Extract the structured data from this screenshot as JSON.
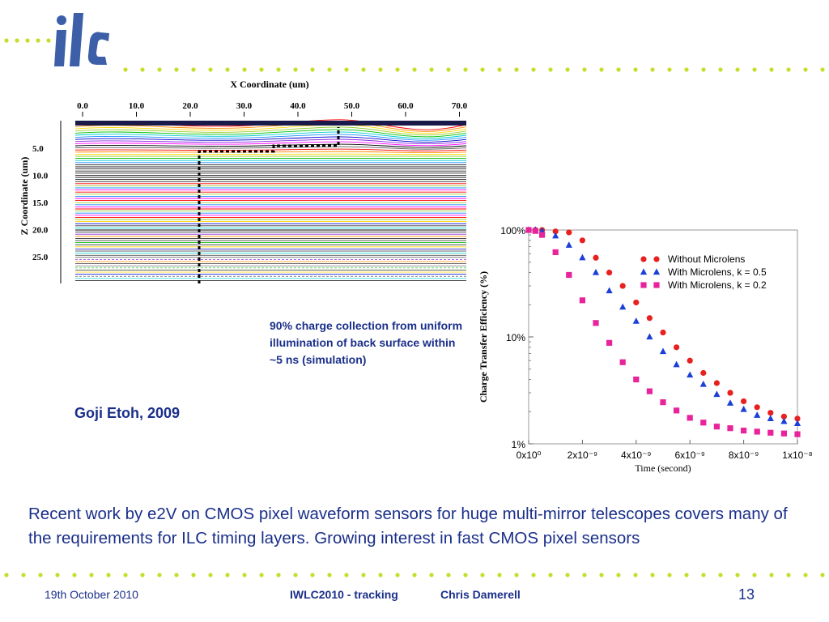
{
  "logo": {
    "text": "ilc"
  },
  "simulation_figure": {
    "x_axis_title": "X Coordinate (um)",
    "x_ticks": [
      "0.0",
      "10.0",
      "20.0",
      "30.0",
      "40.0",
      "50.0",
      "60.0",
      "70.0"
    ],
    "z_axis_title": "Z Coordinate (um)",
    "z_ticks": [
      "5.0",
      "10.0",
      "15.0",
      "20.0",
      "25.0"
    ]
  },
  "simulation_caption": "90% charge collection from uniform illumination of back surface within ~5 ns (simulation)",
  "author_credit": "Goji Etoh, 2009",
  "chart_data": {
    "type": "scatter",
    "title": "",
    "xlabel": "Time (second)",
    "ylabel": "Charge Transfer Efficiency (%)",
    "x_scale": "linear",
    "y_scale": "log",
    "xlim": [
      0,
      1e-08
    ],
    "ylim": [
      1,
      100
    ],
    "x_tick_labels": [
      "0x10⁰",
      "2x10⁻⁹",
      "4x10⁻⁹",
      "6x10⁻⁹",
      "8x10⁻⁹",
      "1x10⁻⁸"
    ],
    "y_tick_labels": [
      "100%",
      "10%",
      "1%"
    ],
    "legend_position": "top-right",
    "series": [
      {
        "name": "Without Microlens",
        "marker": "circle",
        "color": "#e8201f",
        "x": [
          0,
          2.5e-10,
          5e-10,
          1e-09,
          1.5e-09,
          2e-09,
          2.5e-09,
          3e-09,
          3.5e-09,
          4e-09,
          4.5e-09,
          5e-09,
          5.5e-09,
          6e-09,
          6.5e-09,
          7e-09,
          7.5e-09,
          8e-09,
          8.5e-09,
          9e-09,
          9.5e-09,
          1e-08
        ],
        "y": [
          100,
          100,
          100,
          97,
          95,
          80,
          55,
          40,
          30,
          21,
          15,
          11,
          8,
          6,
          4.6,
          3.7,
          3,
          2.5,
          2.2,
          1.95,
          1.8,
          1.72
        ]
      },
      {
        "name": "With Microlens, k = 0.5",
        "marker": "triangle",
        "color": "#1c3fd8",
        "x": [
          0,
          2.5e-10,
          5e-10,
          1e-09,
          1.5e-09,
          2e-09,
          2.5e-09,
          3e-09,
          3.5e-09,
          4e-09,
          4.5e-09,
          5e-09,
          5.5e-09,
          6e-09,
          6.5e-09,
          7e-09,
          7.5e-09,
          8e-09,
          8.5e-09,
          9e-09,
          9.5e-09,
          1e-08
        ],
        "y": [
          100,
          100,
          98,
          88,
          72,
          55,
          40,
          27,
          19,
          14,
          10,
          7.3,
          5.5,
          4.4,
          3.6,
          2.9,
          2.4,
          2.1,
          1.85,
          1.72,
          1.62,
          1.55
        ]
      },
      {
        "name": "With Microlens, k = 0.2",
        "marker": "square",
        "color": "#e8239b",
        "x": [
          0,
          2.5e-10,
          5e-10,
          1e-09,
          1.5e-09,
          2e-09,
          2.5e-09,
          3e-09,
          3.5e-09,
          4e-09,
          4.5e-09,
          5e-09,
          5.5e-09,
          6e-09,
          6.5e-09,
          7e-09,
          7.5e-09,
          8e-09,
          8.5e-09,
          9e-09,
          9.5e-09,
          1e-08
        ],
        "y": [
          100,
          98,
          90,
          62,
          38,
          22,
          13.5,
          8.8,
          5.8,
          4,
          3.1,
          2.45,
          2.05,
          1.75,
          1.58,
          1.45,
          1.4,
          1.33,
          1.3,
          1.27,
          1.25,
          1.23
        ]
      }
    ]
  },
  "body_text": "Recent work by e2V on CMOS pixel waveform sensors for huge multi-mirror telescopes covers many of the requirements for ILC timing layers.  Growing interest in fast CMOS pixel sensors",
  "footer": {
    "date": "19th October 2010",
    "event": "IWLC2010 - tracking",
    "author": "Chris Damerell",
    "page": "13"
  },
  "colors": {
    "text_blue": "#1a2f8a",
    "dot_green": "#c8dc2a",
    "logo_blue": "#3c5fa8"
  }
}
